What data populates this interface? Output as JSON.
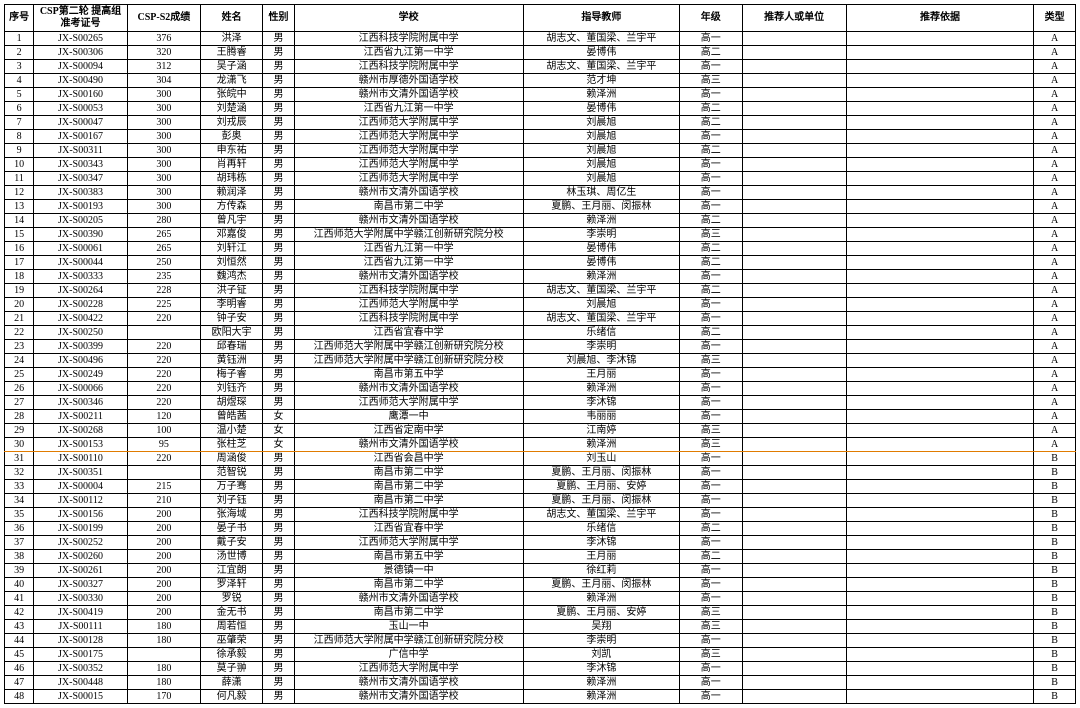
{
  "headers": {
    "seq": "序号",
    "exam": "CSP第二轮\n提高组准考证号",
    "score": "CSP-S2成绩",
    "name": "姓名",
    "sex": "性别",
    "school": "学校",
    "teacher": "指导教师",
    "grade": "年级",
    "recommender": "推荐人或单位",
    "basis": "推荐依据",
    "type": "类型"
  },
  "divider_after_row": 30,
  "divider_color": "#e07b00",
  "rows": [
    {
      "seq": "1",
      "exam": "JX-S00265",
      "score": "376",
      "name": "洪泽",
      "sex": "男",
      "school": "江西科技学院附属中学",
      "teacher": "胡志文、董国梁、兰宇平",
      "grade": "高一",
      "rec": "",
      "basis": "",
      "type": "A"
    },
    {
      "seq": "2",
      "exam": "JX-S00306",
      "score": "320",
      "name": "王腾睿",
      "sex": "男",
      "school": "江西省九江第一中学",
      "teacher": "晏博伟",
      "grade": "高二",
      "rec": "",
      "basis": "",
      "type": "A"
    },
    {
      "seq": "3",
      "exam": "JX-S00094",
      "score": "312",
      "name": "吴子涵",
      "sex": "男",
      "school": "江西科技学院附属中学",
      "teacher": "胡志文、董国梁、兰宇平",
      "grade": "高一",
      "rec": "",
      "basis": "",
      "type": "A"
    },
    {
      "seq": "4",
      "exam": "JX-S00490",
      "score": "304",
      "name": "龙潇飞",
      "sex": "男",
      "school": "赣州市厚德外国语学校",
      "teacher": "范才坤",
      "grade": "高三",
      "rec": "",
      "basis": "",
      "type": "A"
    },
    {
      "seq": "5",
      "exam": "JX-S00160",
      "score": "300",
      "name": "张皖中",
      "sex": "男",
      "school": "赣州市文清外国语学校",
      "teacher": "赖泽洲",
      "grade": "高一",
      "rec": "",
      "basis": "",
      "type": "A"
    },
    {
      "seq": "6",
      "exam": "JX-S00053",
      "score": "300",
      "name": "刘楚涵",
      "sex": "男",
      "school": "江西省九江第一中学",
      "teacher": "晏博伟",
      "grade": "高二",
      "rec": "",
      "basis": "",
      "type": "A"
    },
    {
      "seq": "7",
      "exam": "JX-S00047",
      "score": "300",
      "name": "刘戎辰",
      "sex": "男",
      "school": "江西师范大学附属中学",
      "teacher": "刘晨旭",
      "grade": "高二",
      "rec": "",
      "basis": "",
      "type": "A"
    },
    {
      "seq": "8",
      "exam": "JX-S00167",
      "score": "300",
      "name": "彭奥",
      "sex": "男",
      "school": "江西师范大学附属中学",
      "teacher": "刘晨旭",
      "grade": "高一",
      "rec": "",
      "basis": "",
      "type": "A"
    },
    {
      "seq": "9",
      "exam": "JX-S00311",
      "score": "300",
      "name": "申东祐",
      "sex": "男",
      "school": "江西师范大学附属中学",
      "teacher": "刘晨旭",
      "grade": "高二",
      "rec": "",
      "basis": "",
      "type": "A"
    },
    {
      "seq": "10",
      "exam": "JX-S00343",
      "score": "300",
      "name": "肖再轩",
      "sex": "男",
      "school": "江西师范大学附属中学",
      "teacher": "刘晨旭",
      "grade": "高一",
      "rec": "",
      "basis": "",
      "type": "A"
    },
    {
      "seq": "11",
      "exam": "JX-S00347",
      "score": "300",
      "name": "胡玮栋",
      "sex": "男",
      "school": "江西师范大学附属中学",
      "teacher": "刘晨旭",
      "grade": "高一",
      "rec": "",
      "basis": "",
      "type": "A"
    },
    {
      "seq": "12",
      "exam": "JX-S00383",
      "score": "300",
      "name": "赖润泽",
      "sex": "男",
      "school": "赣州市文清外国语学校",
      "teacher": "林玉琪、周亿生",
      "grade": "高一",
      "rec": "",
      "basis": "",
      "type": "A"
    },
    {
      "seq": "13",
      "exam": "JX-S00193",
      "score": "300",
      "name": "方传森",
      "sex": "男",
      "school": "南昌市第二中学",
      "teacher": "夏鹏、王月丽、闵振林",
      "grade": "高一",
      "rec": "",
      "basis": "",
      "type": "A"
    },
    {
      "seq": "14",
      "exam": "JX-S00205",
      "score": "280",
      "name": "曾凡宇",
      "sex": "男",
      "school": "赣州市文清外国语学校",
      "teacher": "赖泽洲",
      "grade": "高二",
      "rec": "",
      "basis": "",
      "type": "A"
    },
    {
      "seq": "15",
      "exam": "JX-S00390",
      "score": "265",
      "name": "邓嘉俊",
      "sex": "男",
      "school": "江西师范大学附属中学赣江创新研究院分校",
      "teacher": "李崇明",
      "grade": "高三",
      "rec": "",
      "basis": "",
      "type": "A"
    },
    {
      "seq": "16",
      "exam": "JX-S00061",
      "score": "265",
      "name": "刘轩江",
      "sex": "男",
      "school": "江西省九江第一中学",
      "teacher": "晏博伟",
      "grade": "高二",
      "rec": "",
      "basis": "",
      "type": "A"
    },
    {
      "seq": "17",
      "exam": "JX-S00044",
      "score": "250",
      "name": "刘恒然",
      "sex": "男",
      "school": "江西省九江第一中学",
      "teacher": "晏博伟",
      "grade": "高二",
      "rec": "",
      "basis": "",
      "type": "A"
    },
    {
      "seq": "18",
      "exam": "JX-S00333",
      "score": "235",
      "name": "魏鸿杰",
      "sex": "男",
      "school": "赣州市文清外国语学校",
      "teacher": "赖泽洲",
      "grade": "高一",
      "rec": "",
      "basis": "",
      "type": "A"
    },
    {
      "seq": "19",
      "exam": "JX-S00264",
      "score": "228",
      "name": "洪子钲",
      "sex": "男",
      "school": "江西科技学院附属中学",
      "teacher": "胡志文、董国梁、兰宇平",
      "grade": "高二",
      "rec": "",
      "basis": "",
      "type": "A"
    },
    {
      "seq": "20",
      "exam": "JX-S00228",
      "score": "225",
      "name": "李明睿",
      "sex": "男",
      "school": "江西师范大学附属中学",
      "teacher": "刘晨旭",
      "grade": "高一",
      "rec": "",
      "basis": "",
      "type": "A"
    },
    {
      "seq": "21",
      "exam": "JX-S00422",
      "score": "220",
      "name": "钟子安",
      "sex": "男",
      "school": "江西科技学院附属中学",
      "teacher": "胡志文、董国梁、兰宇平",
      "grade": "高一",
      "rec": "",
      "basis": "",
      "type": "A"
    },
    {
      "seq": "22",
      "exam": "JX-S00250",
      "score": "",
      "name": "欧阳大宇",
      "sex": "男",
      "school": "江西省宜春中学",
      "teacher": "乐绪信",
      "grade": "高二",
      "rec": "",
      "basis": "",
      "type": "A"
    },
    {
      "seq": "23",
      "exam": "JX-S00399",
      "score": "220",
      "name": "邱春瑞",
      "sex": "男",
      "school": "江西师范大学附属中学赣江创新研究院分校",
      "teacher": "李崇明",
      "grade": "高一",
      "rec": "",
      "basis": "",
      "type": "A"
    },
    {
      "seq": "24",
      "exam": "JX-S00496",
      "score": "220",
      "name": "黄钰洲",
      "sex": "男",
      "school": "江西师范大学附属中学赣江创新研究院分校",
      "teacher": "刘晨旭、李沐锦",
      "grade": "高三",
      "rec": "",
      "basis": "",
      "type": "A"
    },
    {
      "seq": "25",
      "exam": "JX-S00249",
      "score": "220",
      "name": "梅子睿",
      "sex": "男",
      "school": "南昌市第五中学",
      "teacher": "王月丽",
      "grade": "高一",
      "rec": "",
      "basis": "",
      "type": "A"
    },
    {
      "seq": "26",
      "exam": "JX-S00066",
      "score": "220",
      "name": "刘钰齐",
      "sex": "男",
      "school": "赣州市文清外国语学校",
      "teacher": "赖泽洲",
      "grade": "高一",
      "rec": "",
      "basis": "",
      "type": "A"
    },
    {
      "seq": "27",
      "exam": "JX-S00346",
      "score": "220",
      "name": "胡煜琛",
      "sex": "男",
      "school": "江西师范大学附属中学",
      "teacher": "李沐锦",
      "grade": "高一",
      "rec": "",
      "basis": "",
      "type": "A"
    },
    {
      "seq": "28",
      "exam": "JX-S00211",
      "score": "120",
      "name": "曾皓茜",
      "sex": "女",
      "school": "鹰潭一中",
      "teacher": "韦丽丽",
      "grade": "高一",
      "rec": "",
      "basis": "",
      "type": "A"
    },
    {
      "seq": "29",
      "exam": "JX-S00268",
      "score": "100",
      "name": "温小楚",
      "sex": "女",
      "school": "江西省定南中学",
      "teacher": "江南婷",
      "grade": "高三",
      "rec": "",
      "basis": "",
      "type": "A"
    },
    {
      "seq": "30",
      "exam": "JX-S00153",
      "score": "95",
      "name": "张柱芝",
      "sex": "女",
      "school": "赣州市文清外国语学校",
      "teacher": "赖泽洲",
      "grade": "高三",
      "rec": "",
      "basis": "",
      "type": "A"
    },
    {
      "seq": "31",
      "exam": "JX-S00110",
      "score": "220",
      "name": "周涵俊",
      "sex": "男",
      "school": "江西省会昌中学",
      "teacher": "刘玉山",
      "grade": "高一",
      "rec": "",
      "basis": "",
      "type": "B"
    },
    {
      "seq": "32",
      "exam": "JX-S00351",
      "score": "",
      "name": "范智锐",
      "sex": "男",
      "school": "南昌市第二中学",
      "teacher": "夏鹏、王月丽、闵振林",
      "grade": "高一",
      "rec": "",
      "basis": "",
      "type": "B"
    },
    {
      "seq": "33",
      "exam": "JX-S00004",
      "score": "215",
      "name": "万子骞",
      "sex": "男",
      "school": "南昌市第二中学",
      "teacher": "夏鹏、王月丽、安婷",
      "grade": "高一",
      "rec": "",
      "basis": "",
      "type": "B"
    },
    {
      "seq": "34",
      "exam": "JX-S00112",
      "score": "210",
      "name": "刘子钰",
      "sex": "男",
      "school": "南昌市第二中学",
      "teacher": "夏鹏、王月丽、闵振林",
      "grade": "高一",
      "rec": "",
      "basis": "",
      "type": "B"
    },
    {
      "seq": "35",
      "exam": "JX-S00156",
      "score": "200",
      "name": "张海域",
      "sex": "男",
      "school": "江西科技学院附属中学",
      "teacher": "胡志文、董国梁、兰宇平",
      "grade": "高一",
      "rec": "",
      "basis": "",
      "type": "B"
    },
    {
      "seq": "36",
      "exam": "JX-S00199",
      "score": "200",
      "name": "晏子书",
      "sex": "男",
      "school": "江西省宜春中学",
      "teacher": "乐绪信",
      "grade": "高二",
      "rec": "",
      "basis": "",
      "type": "B"
    },
    {
      "seq": "37",
      "exam": "JX-S00252",
      "score": "200",
      "name": "戴子安",
      "sex": "男",
      "school": "江西师范大学附属中学",
      "teacher": "李沐锦",
      "grade": "高一",
      "rec": "",
      "basis": "",
      "type": "B"
    },
    {
      "seq": "38",
      "exam": "JX-S00260",
      "score": "200",
      "name": "汤世博",
      "sex": "男",
      "school": "南昌市第五中学",
      "teacher": "王月丽",
      "grade": "高二",
      "rec": "",
      "basis": "",
      "type": "B"
    },
    {
      "seq": "39",
      "exam": "JX-S00261",
      "score": "200",
      "name": "江宜朗",
      "sex": "男",
      "school": "景德镇一中",
      "teacher": "徐红莉",
      "grade": "高一",
      "rec": "",
      "basis": "",
      "type": "B"
    },
    {
      "seq": "40",
      "exam": "JX-S00327",
      "score": "200",
      "name": "罗泽轩",
      "sex": "男",
      "school": "南昌市第二中学",
      "teacher": "夏鹏、王月丽、闵振林",
      "grade": "高一",
      "rec": "",
      "basis": "",
      "type": "B"
    },
    {
      "seq": "41",
      "exam": "JX-S00330",
      "score": "200",
      "name": "罗锐",
      "sex": "男",
      "school": "赣州市文清外国语学校",
      "teacher": "赖泽洲",
      "grade": "高一",
      "rec": "",
      "basis": "",
      "type": "B"
    },
    {
      "seq": "42",
      "exam": "JX-S00419",
      "score": "200",
      "name": "金无书",
      "sex": "男",
      "school": "南昌市第二中学",
      "teacher": "夏鹏、王月丽、安婷",
      "grade": "高三",
      "rec": "",
      "basis": "",
      "type": "B"
    },
    {
      "seq": "43",
      "exam": "JX-S00111",
      "score": "180",
      "name": "周若恒",
      "sex": "男",
      "school": "玉山一中",
      "teacher": "吴翔",
      "grade": "高三",
      "rec": "",
      "basis": "",
      "type": "B"
    },
    {
      "seq": "44",
      "exam": "JX-S00128",
      "score": "180",
      "name": "巫肇荣",
      "sex": "男",
      "school": "江西师范大学附属中学赣江创新研究院分校",
      "teacher": "李崇明",
      "grade": "高一",
      "rec": "",
      "basis": "",
      "type": "B"
    },
    {
      "seq": "45",
      "exam": "JX-S00175",
      "score": "",
      "name": "徐承毅",
      "sex": "男",
      "school": "广信中学",
      "teacher": "刘凯",
      "grade": "高三",
      "rec": "",
      "basis": "",
      "type": "B"
    },
    {
      "seq": "46",
      "exam": "JX-S00352",
      "score": "180",
      "name": "莫子翀",
      "sex": "男",
      "school": "江西师范大学附属中学",
      "teacher": "李沐锦",
      "grade": "高一",
      "rec": "",
      "basis": "",
      "type": "B"
    },
    {
      "seq": "47",
      "exam": "JX-S00448",
      "score": "180",
      "name": "薛潇",
      "sex": "男",
      "school": "赣州市文清外国语学校",
      "teacher": "赖泽洲",
      "grade": "高一",
      "rec": "",
      "basis": "",
      "type": "B"
    },
    {
      "seq": "48",
      "exam": "JX-S00015",
      "score": "170",
      "name": "何凡毅",
      "sex": "男",
      "school": "赣州市文清外国语学校",
      "teacher": "赖泽洲",
      "grade": "高一",
      "rec": "",
      "basis": "",
      "type": "B"
    }
  ]
}
